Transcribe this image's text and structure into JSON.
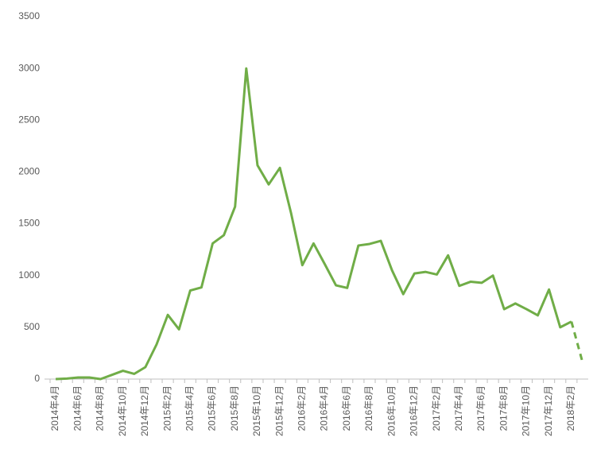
{
  "chart_data": {
    "type": "line",
    "categories": [
      "2014年4月",
      null,
      "2014年6月",
      null,
      "2014年8月",
      null,
      "2014年10月",
      null,
      "2014年12月",
      null,
      "2015年2月",
      null,
      "2015年4月",
      null,
      "2015年6月",
      null,
      "2015年8月",
      null,
      "2015年10月",
      null,
      "2015年12月",
      null,
      "2016年2月",
      null,
      "2016年4月",
      null,
      "2016年6月",
      null,
      "2016年8月",
      null,
      "2016年10月",
      null,
      "2016年12月",
      null,
      "2017年2月",
      null,
      "2017年4月",
      null,
      "2017年6月",
      null,
      "2017年8月",
      null,
      "2017年10月",
      null,
      "2017年12月",
      null,
      "2018年2月",
      null
    ],
    "series": [
      {
        "color": "#70ad47",
        "dashed": false,
        "values": [
          0,
          5,
          15,
          15,
          0,
          40,
          80,
          50,
          115,
          335,
          620,
          480,
          855,
          885,
          1310,
          1390,
          1665,
          3000,
          2065,
          1880,
          2040,
          1600,
          1100,
          1310,
          1110,
          905,
          880,
          1290,
          1305,
          1335,
          1050,
          820,
          1020,
          1035,
          1010,
          1195,
          900,
          940,
          930,
          1000,
          675,
          730,
          675,
          615,
          865,
          500,
          555,
          null
        ]
      },
      {
        "color": "#70ad47",
        "dashed": true,
        "values": [
          null,
          null,
          null,
          null,
          null,
          null,
          null,
          null,
          null,
          null,
          null,
          null,
          null,
          null,
          null,
          null,
          null,
          null,
          null,
          null,
          null,
          null,
          null,
          null,
          null,
          null,
          null,
          null,
          null,
          null,
          null,
          null,
          null,
          null,
          null,
          null,
          null,
          null,
          null,
          null,
          null,
          null,
          null,
          null,
          null,
          null,
          555,
          160
        ]
      }
    ],
    "ylim": [
      0,
      3500
    ],
    "yticks": [
      0,
      500,
      1000,
      1500,
      2000,
      2500,
      3000,
      3500
    ],
    "grid": false
  }
}
